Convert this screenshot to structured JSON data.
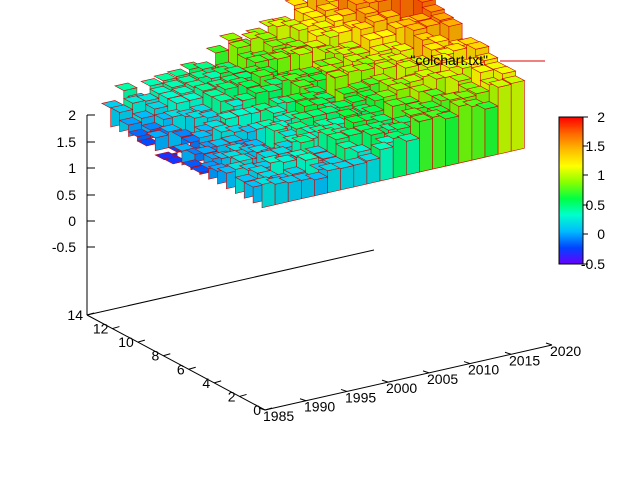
{
  "chart_data": {
    "type": "3d-bar",
    "legend": {
      "label": "\"colchart.txt\"",
      "color": "#e00000",
      "placement": "top-right"
    },
    "z_ticks": [
      "2",
      "1.5",
      "1",
      "0.5",
      "0",
      "-0.5"
    ],
    "x_ticks": [
      "1985",
      "1990",
      "1995",
      "2000",
      "2005",
      "2010",
      "2015",
      "2020"
    ],
    "y_ticks": [
      "0",
      "2",
      "4",
      "6",
      "8",
      "10",
      "12",
      "14"
    ],
    "colorbar": {
      "ticks": [
        "2",
        "1.5",
        "1",
        "0.5",
        "0",
        "-0.5"
      ],
      "range": [
        -0.6,
        2
      ],
      "palette": [
        "#6600ff",
        "#0044ff",
        "#00bbff",
        "#00ffcc",
        "#00ff44",
        "#88ff00",
        "#ffff00",
        "#ffbb00",
        "#ff6600",
        "#ff0000"
      ]
    },
    "xlim": [
      1985,
      2020
    ],
    "ylim": [
      0,
      14
    ],
    "zlim": [
      -0.6,
      2
    ],
    "grid": false,
    "x_years": [
      1985,
      1990,
      1995,
      2000,
      2005,
      2010,
      2015,
      2020
    ],
    "y_rows": [
      1,
      3,
      5,
      7,
      9,
      11,
      13
    ],
    "values": [
      [
        0.25,
        0.1,
        0.15,
        0.3,
        0.45,
        0.6,
        0.8,
        1.0
      ],
      [
        0.05,
        0.1,
        0.25,
        0.4,
        0.55,
        0.75,
        0.95,
        1.2
      ],
      [
        -0.1,
        0.05,
        0.2,
        0.35,
        0.6,
        0.85,
        1.1,
        1.5
      ],
      [
        -0.2,
        -0.05,
        0.15,
        0.45,
        0.7,
        0.95,
        1.3,
        1.7
      ],
      [
        -0.3,
        -0.1,
        0.2,
        0.5,
        0.8,
        1.1,
        1.45,
        1.85
      ],
      [
        -0.15,
        0.0,
        0.25,
        0.55,
        0.85,
        1.2,
        1.6,
        2.0
      ],
      [
        0.1,
        0.2,
        0.35,
        0.6,
        0.9,
        1.25,
        1.7,
        2.0
      ]
    ]
  }
}
